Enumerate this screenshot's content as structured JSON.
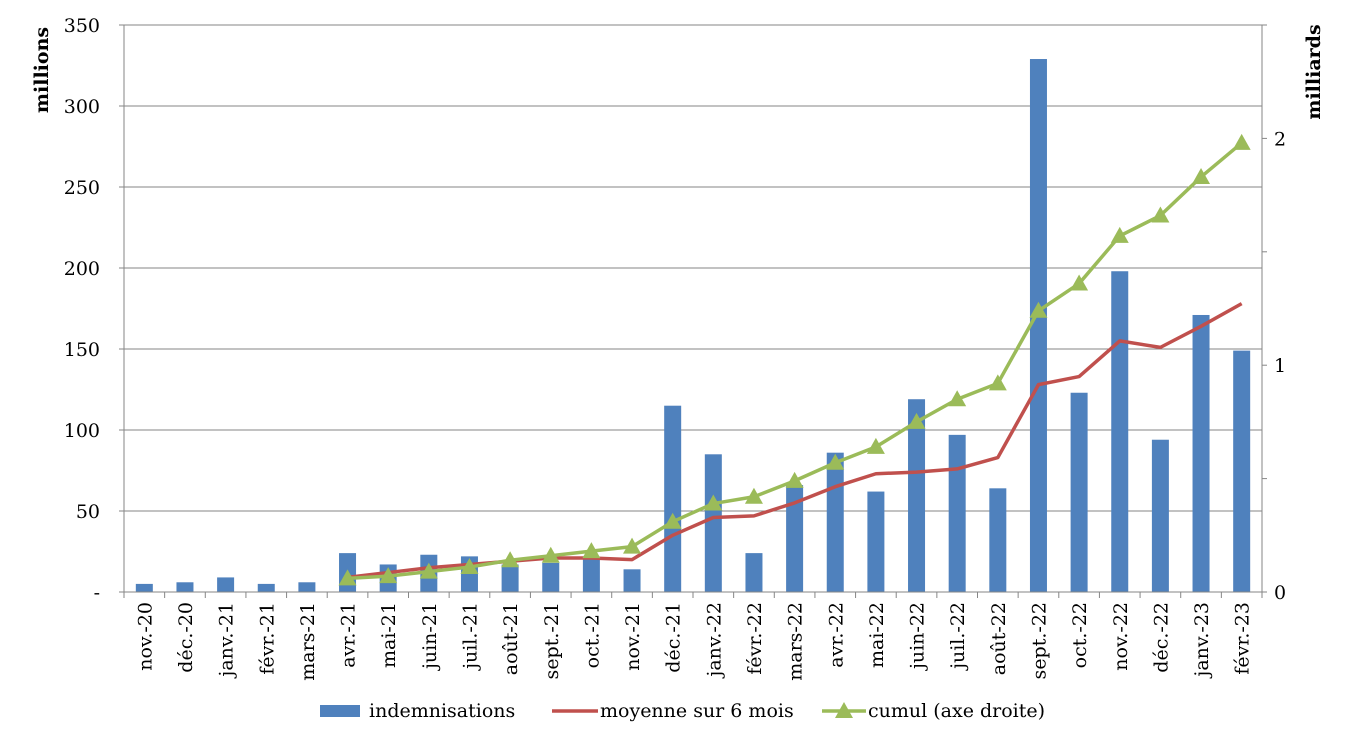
{
  "chart_data": {
    "type": "bar",
    "title": "",
    "categories": [
      "nov.-20",
      "déc.-20",
      "janv.-21",
      "févr.-21",
      "mars-21",
      "avr.-21",
      "mai-21",
      "juin-21",
      "juil.-21",
      "août-21",
      "sept.-21",
      "oct.-21",
      "nov.-21",
      "déc.-21",
      "janv.-22",
      "févr.-22",
      "mars-22",
      "avr.-22",
      "mai-22",
      "juin-22",
      "juil.-22",
      "août-22",
      "sept.-22",
      "oct.-22",
      "nov.-22",
      "déc.-22",
      "janv.-23",
      "févr.-23"
    ],
    "ylabel": "millions",
    "y2label": "milliards",
    "ylim": [
      0,
      350
    ],
    "y2lim": [
      0,
      2.5
    ],
    "yticks": [
      "-",
      "50",
      "100",
      "150",
      "200",
      "250",
      "300",
      "350"
    ],
    "yticks_values": [
      0,
      50,
      100,
      150,
      200,
      250,
      300,
      350
    ],
    "y2ticks": [
      "0",
      "1",
      "2"
    ],
    "y2ticks_values": [
      0,
      1,
      2
    ],
    "grid": true,
    "legend_position": "bottom",
    "series": [
      {
        "name": "indemnisations",
        "type": "bar",
        "axis": "left",
        "color": "#4f81bd",
        "values": [
          5,
          6,
          9,
          5,
          6,
          24,
          17,
          23,
          22,
          17,
          18,
          21,
          14,
          115,
          85,
          24,
          66,
          86,
          62,
          119,
          97,
          64,
          329,
          123,
          198,
          94,
          171,
          149
        ]
      },
      {
        "name": "moyenne sur 6 mois",
        "type": "line",
        "axis": "left",
        "color": "#c0504d",
        "values": [
          null,
          null,
          null,
          null,
          null,
          9,
          12,
          15,
          17,
          19,
          21,
          21,
          20,
          35,
          46,
          47,
          55,
          65,
          73,
          74,
          76,
          83,
          128,
          133,
          155,
          151,
          164,
          178
        ]
      },
      {
        "name": "cumul (axe droite)",
        "type": "line",
        "axis": "right",
        "color": "#9bbb59",
        "marker": "triangle",
        "values": [
          null,
          null,
          null,
          null,
          null,
          0.06,
          0.07,
          0.09,
          0.11,
          0.14,
          0.16,
          0.18,
          0.2,
          0.31,
          0.39,
          0.42,
          0.49,
          0.57,
          0.64,
          0.75,
          0.85,
          0.92,
          1.24,
          1.36,
          1.57,
          1.66,
          1.83,
          1.98
        ]
      }
    ]
  }
}
